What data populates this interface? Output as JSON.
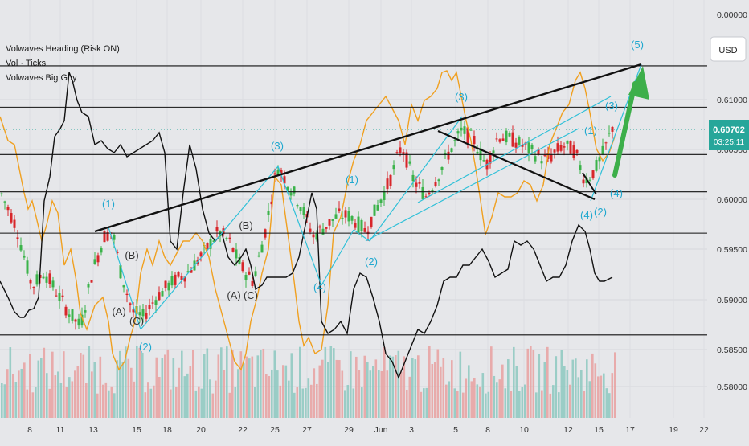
{
  "chart_data": {
    "type": "candlestick",
    "indicators": [
      "Volwaves Heading (Risk ON)",
      "Vol · Ticks",
      "Volwaves Big Guy"
    ],
    "currency": "USD",
    "price_axis": {
      "ticks": [
        "0.00000",
        "0.61000",
        "0.60500",
        "0.60000",
        "0.59500",
        "0.59000",
        "0.58500",
        "0.58000"
      ],
      "range": [
        0.5772,
        0.6172
      ]
    },
    "last_price": "0.60702",
    "countdown": "03:25:11",
    "x_axis": {
      "ticks": [
        "8",
        "11",
        "13",
        "15",
        "18",
        "20",
        "22",
        "25",
        "27",
        "29",
        "Jun",
        "3",
        "5",
        "8",
        "10",
        "12",
        "15",
        "17",
        "19",
        "22"
      ],
      "tick_colors": {
        "Jun": "#1e5bd6"
      }
    },
    "horizontal_levels": [
      0.6124,
      0.6083,
      0.6036,
      0.5999,
      0.5958,
      0.5857
    ],
    "wave_labels": [
      {
        "text": "(1)",
        "x": "14",
        "y": 0.599,
        "style": "cyan"
      },
      {
        "text": "(B)",
        "x": "14.4",
        "y": 0.594,
        "style": "dark"
      },
      {
        "text": "(A)",
        "x": "13.6",
        "y": 0.5892,
        "style": "dark"
      },
      {
        "text": "(C)",
        "x": "14.8",
        "y": 0.5876,
        "style": "dark"
      },
      {
        "text": "(2)",
        "x": "15.4",
        "y": 0.5839,
        "style": "cyan"
      },
      {
        "text": "(B)",
        "x": "22.4",
        "y": 0.5963,
        "style": "dark"
      },
      {
        "text": "(A)",
        "x": "21.8",
        "y": 0.591,
        "style": "dark"
      },
      {
        "text": "(C)",
        "x": "22.3",
        "y": 0.591,
        "style": "dark"
      },
      {
        "text": "(3)",
        "x": "25.5",
        "y": 0.604,
        "style": "cyan"
      },
      {
        "text": "(4)",
        "x": "27.8",
        "y": 0.5908,
        "style": "cyan"
      },
      {
        "text": "(1)",
        "x": "28.3",
        "y": 0.6012,
        "style": "cyan"
      },
      {
        "text": "(2)",
        "x": "29.2",
        "y": 0.5935,
        "style": "cyan"
      },
      {
        "text": "(3)",
        "x": "5",
        "y": 0.6101,
        "style": "cyan"
      },
      {
        "text": "(1)",
        "x": "12.7",
        "y": 0.6066,
        "style": "cyan"
      },
      {
        "text": "(3)",
        "x": "15.5",
        "y": 0.6091,
        "style": "cyan"
      },
      {
        "text": "(4)",
        "x": "15.4",
        "y": 0.5997,
        "style": "cyan"
      },
      {
        "text": "(2)",
        "x": "15.2",
        "y": 0.5982,
        "style": "cyan"
      },
      {
        "text": "(4)",
        "x": "14.3",
        "y": 0.597,
        "style": "cyan"
      },
      {
        "text": "(5)",
        "x": "17.3",
        "y": 0.616,
        "style": "cyan"
      }
    ]
  }
}
